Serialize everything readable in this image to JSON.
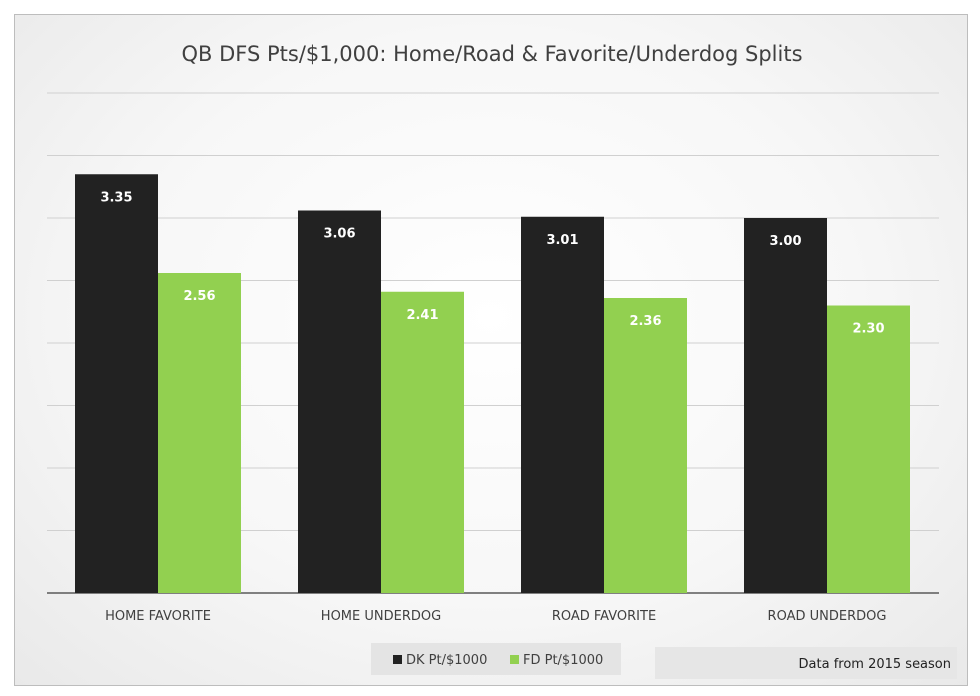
{
  "chart_data": {
    "type": "bar",
    "title": "QB DFS Pts/$1,000: Home/Road & Favorite/Underdog Splits",
    "categories": [
      "HOME FAVORITE",
      "HOME UNDERDOG",
      "ROAD FAVORITE",
      "ROAD UNDERDOG"
    ],
    "series": [
      {
        "name": "DK Pt/$1000",
        "values": [
          3.35,
          3.06,
          3.01,
          3.0
        ],
        "labels": [
          "3.35",
          "3.06",
          "3.01",
          "3.00"
        ],
        "color": "#222222"
      },
      {
        "name": "FD Pt/$1000",
        "values": [
          2.56,
          2.41,
          2.36,
          2.3
        ],
        "labels": [
          "2.56",
          "2.41",
          "2.36",
          "2.30"
        ],
        "color": "#92d050"
      }
    ],
    "ylim": [
      0,
      4.0
    ],
    "gridlines": [
      0,
      0.5,
      1.0,
      1.5,
      2.0,
      2.5,
      3.0,
      3.5,
      4.0
    ],
    "grid": true,
    "show_y_tick_labels": false,
    "legend_position": "bottom",
    "note": "Data from 2015 season"
  }
}
